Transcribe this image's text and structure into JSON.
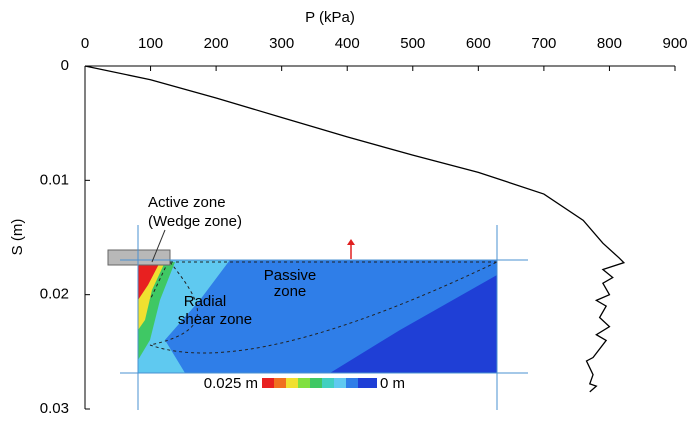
{
  "chart_data": {
    "type": "line",
    "x_label": "P (kPa)",
    "y_label": "S (m)",
    "x": [
      0,
      100,
      200,
      300,
      400,
      500,
      600,
      700,
      760,
      790,
      815,
      822,
      790,
      805,
      790,
      800,
      780,
      795,
      785,
      800,
      780,
      795,
      775,
      765,
      775,
      770,
      780,
      770
    ],
    "series": [
      {
        "color": "#000000",
        "values": [
          0,
          0.0012,
          0.0028,
          0.0045,
          0.0062,
          0.0078,
          0.0093,
          0.0112,
          0.0135,
          0.0155,
          0.0168,
          0.0172,
          0.0178,
          0.0185,
          0.019,
          0.02,
          0.0205,
          0.021,
          0.022,
          0.0228,
          0.0235,
          0.024,
          0.0255,
          0.0258,
          0.027,
          0.0278,
          0.028,
          0.0285
        ]
      }
    ],
    "xlim": [
      0,
      900
    ],
    "xticks": [
      0,
      100,
      200,
      300,
      400,
      500,
      600,
      700,
      800,
      900
    ],
    "ylim": [
      0,
      0.03
    ],
    "yticks": [
      0,
      0.01,
      0.02,
      0.03
    ],
    "y_inverted": true,
    "annotations": [
      "Active zone",
      "(Wedge zone)",
      "Passive",
      "zone",
      "Radial",
      "shear zone",
      "0.025 m",
      "0 m"
    ]
  }
}
